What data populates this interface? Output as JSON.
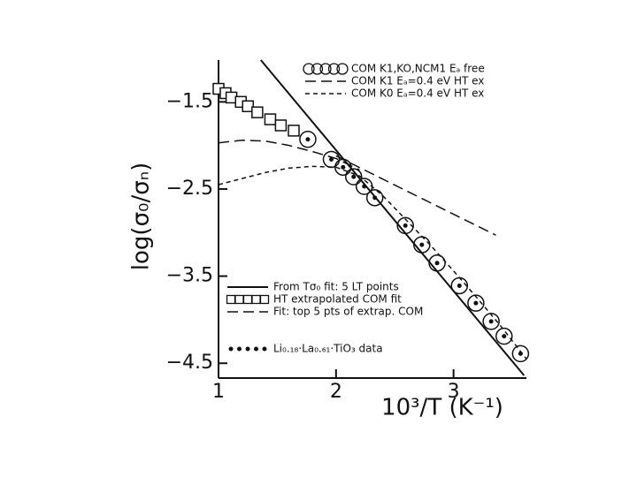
{
  "chart_data": {
    "type": "scatter-line",
    "x_label": "10³/T (K⁻¹)",
    "y_label": "log(σ₀/σₙ)",
    "xlim": [
      1,
      3.62
    ],
    "ylim": [
      -4.67,
      -1.02
    ],
    "xticks": [
      1,
      2,
      3
    ],
    "yticks": [
      {
        "value": -1.5,
        "label": "−1.5"
      },
      {
        "value": -2.5,
        "label": "−2.5"
      },
      {
        "value": -3.5,
        "label": "−3.5"
      },
      {
        "value": -4.5,
        "label": "−4.5"
      }
    ],
    "series": [
      {
        "name": "COM K1,KO,NCM1 Eₐ free",
        "style": "circles",
        "color": "#111",
        "x": [
          1.76,
          1.96,
          2.06,
          2.15,
          2.24,
          2.33,
          2.59,
          2.73,
          2.86,
          3.05,
          3.19,
          3.32,
          3.43,
          3.57
        ],
        "values": [
          -1.93,
          -2.16,
          -2.25,
          -2.36,
          -2.47,
          -2.6,
          -2.92,
          -3.14,
          -3.35,
          -3.61,
          -3.81,
          -4.02,
          -4.19,
          -4.39
        ]
      },
      {
        "name": "COM K1 Eₐ=0.4 eV HT ex",
        "style": "long-dash",
        "color": "#111",
        "x": [
          1,
          1.2,
          1.4,
          1.6,
          1.8,
          2.0,
          2.2
        ],
        "values": [
          -1.97,
          -1.94,
          -1.95,
          -2.0,
          -2.07,
          -2.15,
          -2.28
        ]
      },
      {
        "name": "COM K0 Eₐ=0.4 eV HT ex",
        "style": "short-dash",
        "color": "#111",
        "x": [
          1,
          1.2,
          1.4,
          1.6,
          1.8,
          2.0,
          2.2,
          2.4,
          2.6,
          2.8,
          3.0,
          3.2,
          3.4,
          3.62
        ],
        "values": [
          -2.45,
          -2.38,
          -2.31,
          -2.26,
          -2.24,
          -2.25,
          -2.35,
          -2.58,
          -2.86,
          -3.14,
          -3.44,
          -3.75,
          -4.07,
          -4.45
        ]
      },
      {
        "name": "From Tσ₀ fit: 5 LT points",
        "style": "solid",
        "color": "#111",
        "x": [
          1.36,
          3.6
        ],
        "values": [
          -1.02,
          -4.64
        ]
      },
      {
        "name": "HT extrapolated COM fit",
        "style": "squares",
        "color": "#111",
        "x": [
          1.0,
          1.06,
          1.11,
          1.19,
          1.25,
          1.33,
          1.44,
          1.53,
          1.64
        ],
        "values": [
          -1.35,
          -1.4,
          -1.45,
          -1.5,
          -1.55,
          -1.62,
          -1.7,
          -1.77,
          -1.83
        ]
      },
      {
        "name": "Fit: top 5 pts of extrap. COM",
        "style": "long-dash",
        "color": "#111",
        "x": [
          2.0,
          3.36
        ],
        "values": [
          -2.12,
          -3.03
        ]
      },
      {
        "name": "Li₀.₁₈·La₀.₆₁·TiO₃ data",
        "style": "dots",
        "color": "#111",
        "x": [
          1.76,
          1.96,
          2.06,
          2.15,
          2.24,
          2.33,
          2.59,
          2.73,
          2.86,
          3.05,
          3.19,
          3.32,
          3.43,
          3.57
        ],
        "values": [
          -1.93,
          -2.16,
          -2.25,
          -2.36,
          -2.47,
          -2.6,
          -2.92,
          -3.14,
          -3.35,
          -3.61,
          -3.81,
          -4.02,
          -4.19,
          -4.39
        ]
      }
    ]
  }
}
